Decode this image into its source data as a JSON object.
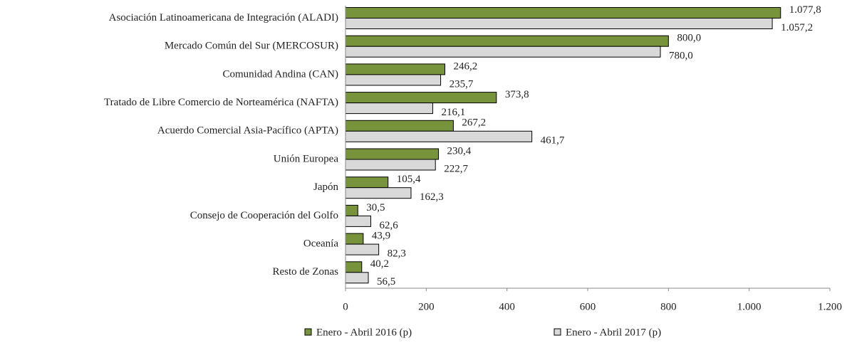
{
  "chart_data": {
    "type": "bar",
    "orientation": "horizontal",
    "categories": [
      "Asociación Latinoamericana de Integración (ALADI)",
      "Mercado Común del Sur (MERCOSUR)",
      "Comunidad Andina (CAN)",
      "Tratado de Libre Comercio de Norteamérica (NAFTA)",
      "Acuerdo Comercial Asia-Pacífico (APTA)",
      "Unión Europea",
      "Japón",
      "Consejo de Cooperación del Golfo",
      "Oceanía",
      "Resto de Zonas"
    ],
    "series": [
      {
        "name": "Enero - Abril 2016 (p)",
        "color": "#77933c",
        "values": [
          1077.8,
          800.0,
          246.2,
          373.8,
          267.2,
          230.4,
          105.4,
          30.5,
          43.9,
          40.2
        ],
        "value_labels": [
          "1.077,8",
          "800,0",
          "246,2",
          "373,8",
          "267,2",
          "230,4",
          "105,4",
          "30,5",
          "43,9",
          "40,2"
        ]
      },
      {
        "name": "Enero - Abril 2017 (p)",
        "color": "#d9d9d9",
        "values": [
          1057.2,
          780.0,
          235.7,
          216.1,
          461.7,
          222.7,
          162.3,
          62.6,
          82.3,
          56.5
        ],
        "value_labels": [
          "1.057,2",
          "780,0",
          "235,7",
          "216,1",
          "461,7",
          "222,7",
          "162,3",
          "62,6",
          "82,3",
          "56,5"
        ]
      }
    ],
    "xlim": [
      0,
      1200
    ],
    "xticks": [
      0,
      200,
      400,
      600,
      800,
      {
        "value": 1000,
        "label": "1.000"
      },
      {
        "value": 1200,
        "label": "1.200"
      }
    ],
    "legend": "bottom"
  }
}
